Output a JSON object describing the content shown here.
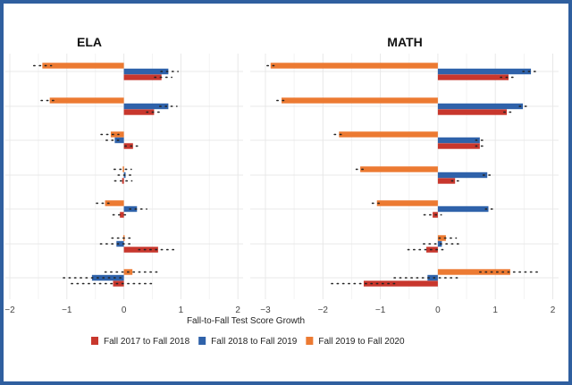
{
  "chart_data": [
    {
      "type": "bar",
      "orientation": "horizontal",
      "title": "ELA",
      "xlim": [
        -2,
        2
      ],
      "xticks": [
        -2,
        -1,
        0,
        1,
        2
      ],
      "grid": true,
      "series": [
        {
          "name": "Fall 2017 to Fall 2018",
          "color": "#c8372d",
          "values": [
            0.66,
            0.53,
            0.16,
            -0.03,
            -0.07,
            0.6,
            -0.19
          ],
          "ci": [
            [
              0.54,
              0.84
            ],
            [
              0.4,
              0.69
            ],
            [
              0.02,
              0.31
            ],
            [
              -0.16,
              0.14
            ],
            [
              -0.19,
              0.1
            ],
            [
              0.26,
              0.95
            ],
            [
              -0.92,
              0.54
            ]
          ]
        },
        {
          "name": "Fall 2018 to Fall 2019",
          "color": "#2f62aa",
          "values": [
            0.78,
            0.78,
            -0.16,
            0.03,
            0.23,
            -0.13,
            -0.56
          ],
          "ci": [
            [
              0.65,
              0.95
            ],
            [
              0.63,
              0.93
            ],
            [
              -0.31,
              -0.03
            ],
            [
              -0.1,
              0.19
            ],
            [
              0.1,
              0.4
            ],
            [
              -0.41,
              0.17
            ],
            [
              -1.06,
              -0.02
            ]
          ]
        },
        {
          "name": "Fall 2019 to Fall 2020",
          "color": "#ec7a32",
          "values": [
            -1.43,
            -1.3,
            -0.23,
            -0.02,
            -0.33,
            -0.01,
            0.15
          ],
          "ci": [
            [
              -1.58,
              -1.27
            ],
            [
              -1.45,
              -1.16
            ],
            [
              -0.4,
              -0.09
            ],
            [
              -0.17,
              0.13
            ],
            [
              -0.48,
              -0.19
            ],
            [
              -0.21,
              0.17
            ],
            [
              -0.33,
              0.65
            ]
          ]
        }
      ]
    },
    {
      "type": "bar",
      "orientation": "horizontal",
      "title": "MATH",
      "xlim": [
        -3,
        2
      ],
      "xticks": [
        -3,
        -2,
        -1,
        0,
        1,
        2
      ],
      "grid": true,
      "series": [
        {
          "name": "Fall 2017 to Fall 2018",
          "color": "#c8372d",
          "values": [
            1.23,
            1.2,
            0.73,
            0.3,
            -0.09,
            -0.2,
            -1.29
          ],
          "ci": [
            [
              1.09,
              1.38
            ],
            [
              1.15,
              1.34
            ],
            [
              0.66,
              0.84
            ],
            [
              0.24,
              0.43
            ],
            [
              -0.24,
              0.06
            ],
            [
              -0.52,
              0.16
            ],
            [
              -1.85,
              -0.69
            ]
          ]
        },
        {
          "name": "Fall 2018 to Fall 2019",
          "color": "#2f62aa",
          "values": [
            1.62,
            1.48,
            0.73,
            0.86,
            0.88,
            0.07,
            -0.18
          ],
          "ci": [
            [
              1.48,
              1.77
            ],
            [
              1.42,
              1.61
            ],
            [
              0.66,
              0.84
            ],
            [
              0.79,
              0.98
            ],
            [
              0.83,
              1.02
            ],
            [
              -0.25,
              0.42
            ],
            [
              -0.76,
              0.39
            ]
          ]
        },
        {
          "name": "Fall 2019 to Fall 2020",
          "color": "#ec7a32",
          "values": [
            -2.91,
            -2.72,
            -1.72,
            -1.35,
            -1.06,
            0.14,
            1.26
          ],
          "ci": [
            [
              -2.97,
              -2.79
            ],
            [
              -2.8,
              -2.61
            ],
            [
              -1.8,
              -1.61
            ],
            [
              -1.42,
              -1.23
            ],
            [
              -1.14,
              -0.95
            ],
            [
              0.02,
              0.32
            ],
            [
              0.73,
              1.8
            ]
          ]
        }
      ]
    }
  ],
  "xlabel": "Fall-to-Fall Test Score Growth",
  "legend": {
    "placement": "bottom",
    "items": [
      {
        "label": "Fall 2017 to Fall 2018",
        "color": "#c8372d"
      },
      {
        "label": "Fall 2018 to Fall 2019",
        "color": "#2f62aa"
      },
      {
        "label": "Fall 2019 to Fall 2020",
        "color": "#ec7a32"
      }
    ]
  }
}
